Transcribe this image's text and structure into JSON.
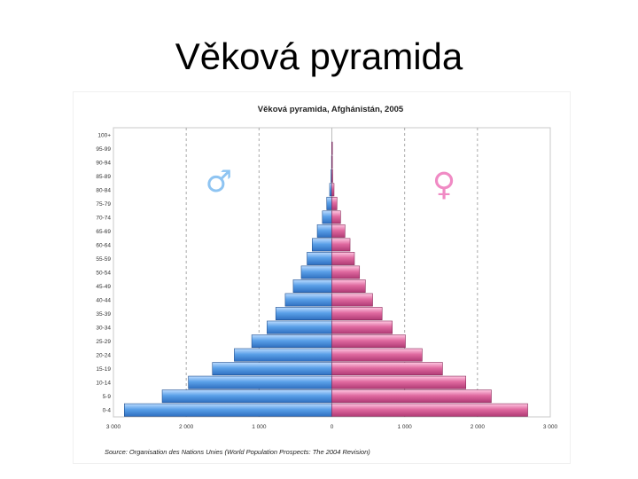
{
  "slide": {
    "title": "Věková pyramida"
  },
  "chart_data": {
    "type": "bar",
    "orientation": "horizontal-pyramid",
    "title": "Věková pyramida, Afghánistán, 2005",
    "source": "Source: Organisation des Nations Unies (World Population Prospects: The 2004 Revision)",
    "categories": [
      "0-4",
      "5-9",
      "10-14",
      "15-19",
      "20-24",
      "25-29",
      "30-34",
      "35-39",
      "40-44",
      "45-49",
      "50-54",
      "55-59",
      "60-64",
      "65-69",
      "70-74",
      "75-79",
      "80-84",
      "85-89",
      "90-94",
      "95-99",
      "100+"
    ],
    "category_labels": [
      "0-4",
      "5-9",
      "10-14",
      "15-19",
      "20-24",
      "25-29",
      "30-34",
      "35-39",
      "40-44",
      "45-49",
      "50-54",
      "55-59",
      "60-64",
      "65-69",
      "70-74",
      "75-79",
      "80-84",
      "85-89",
      "90-94",
      "95-99",
      "100+"
    ],
    "series": [
      {
        "symbol": "♂",
        "side": "left",
        "color": "#5aa0e8",
        "values": [
          2850,
          2330,
          1970,
          1640,
          1340,
          1100,
          890,
          770,
          640,
          530,
          420,
          340,
          270,
          200,
          130,
          70,
          30,
          12,
          4,
          1,
          0
        ]
      },
      {
        "symbol": "♀",
        "side": "right",
        "color": "#e06aa0",
        "values": [
          2690,
          2190,
          1840,
          1520,
          1240,
          1010,
          830,
          690,
          560,
          460,
          380,
          310,
          250,
          180,
          120,
          70,
          30,
          12,
          4,
          1,
          0
        ]
      }
    ],
    "xlim": [
      -3000,
      3000
    ],
    "xticks": [
      -3000,
      -2000,
      -1000,
      0,
      1000,
      2000,
      3000
    ],
    "xtick_labels": [
      "3 000",
      "2 000",
      "1 000",
      "0",
      "1 000",
      "2 000",
      "3 000"
    ],
    "grid": "vertical-dashed",
    "male_symbol_color": "#8ec4f2",
    "female_symbol_color": "#f08ac4"
  }
}
